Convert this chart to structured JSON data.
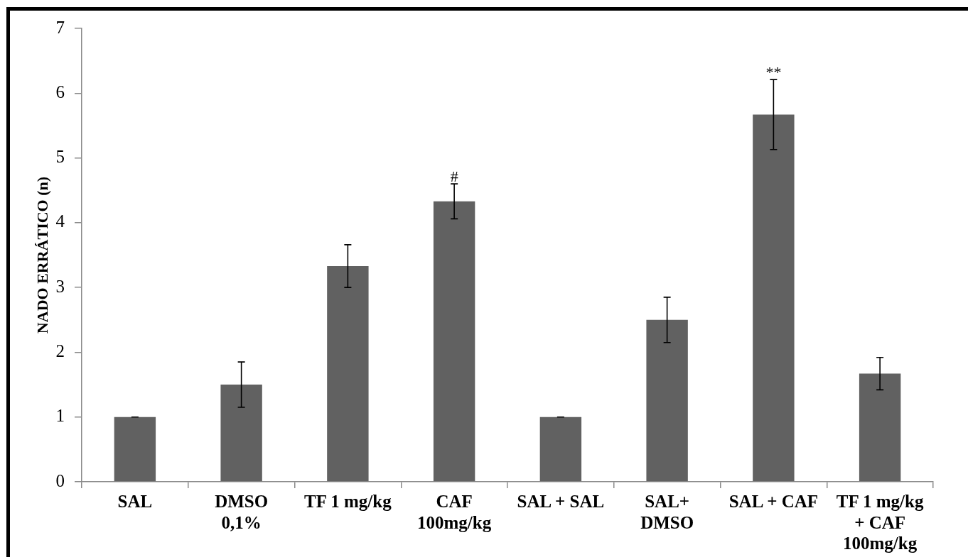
{
  "chart_data": {
    "type": "bar",
    "ylabel": "NADO ERRÁTICO (n)",
    "categories": [
      "SAL",
      "DMSO\n0,1%",
      "TF 1 mg/kg",
      "CAF\n100mg/kg",
      "SAL + SAL",
      "SAL+\nDMSO",
      "SAL + CAF",
      "TF 1 mg/kg\n+ CAF\n100mg/kg"
    ],
    "values": [
      1,
      1.5,
      3.33,
      4.33,
      1,
      2.5,
      5.67,
      1.67
    ],
    "errors": [
      0,
      0.35,
      0.33,
      0.27,
      0,
      0.35,
      0.54,
      0.25
    ],
    "color": "#616161",
    "ylim": [
      0,
      7
    ],
    "yticks": [
      0,
      1,
      2,
      3,
      4,
      5,
      6,
      7
    ],
    "annotations": [
      {
        "text": "#",
        "x": "CAF\n100mg/kg",
        "y": 4.6
      },
      {
        "text": "**",
        "x": "SAL + CAF",
        "y": 6.21
      }
    ]
  }
}
